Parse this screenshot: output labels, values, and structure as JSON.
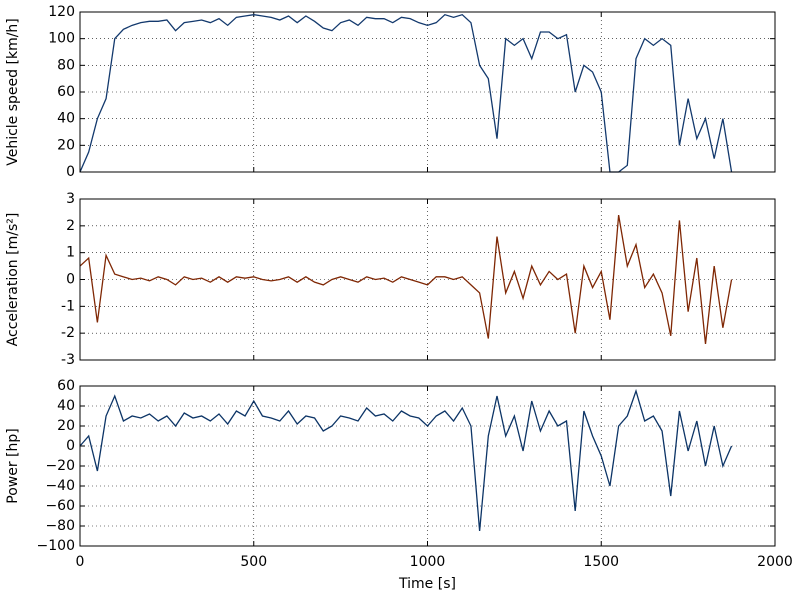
{
  "chart_data": [
    {
      "type": "line",
      "ylabel": "Vehicle speed [km/h]",
      "x": [
        0,
        25,
        50,
        75,
        100,
        125,
        150,
        175,
        200,
        225,
        250,
        275,
        300,
        325,
        350,
        375,
        400,
        425,
        450,
        475,
        500,
        525,
        550,
        575,
        600,
        625,
        650,
        675,
        700,
        725,
        750,
        775,
        800,
        825,
        850,
        875,
        900,
        925,
        950,
        975,
        1000,
        1025,
        1050,
        1075,
        1100,
        1125,
        1150,
        1175,
        1200,
        1225,
        1250,
        1275,
        1300,
        1325,
        1350,
        1375,
        1400,
        1425,
        1450,
        1475,
        1500,
        1525,
        1550,
        1575,
        1600,
        1625,
        1650,
        1675,
        1700,
        1725,
        1750,
        1775,
        1800,
        1825,
        1850,
        1875
      ],
      "series": [
        {
          "name": "speed",
          "color": "#13396d",
          "values": [
            0,
            15,
            40,
            55,
            100,
            107,
            110,
            112,
            113,
            113,
            114,
            106,
            112,
            113,
            114,
            112,
            115,
            110,
            116,
            117,
            118,
            117,
            116,
            114,
            117,
            112,
            117,
            113,
            108,
            106,
            112,
            114,
            110,
            116,
            115,
            115,
            112,
            116,
            115,
            112,
            110,
            112,
            118,
            116,
            118,
            112,
            80,
            70,
            25,
            100,
            95,
            100,
            85,
            105,
            105,
            100,
            103,
            60,
            80,
            75,
            60,
            0,
            0,
            5,
            85,
            100,
            95,
            100,
            95,
            20,
            55,
            25,
            40,
            10,
            40,
            0
          ]
        }
      ],
      "xlim": [
        0,
        2000
      ],
      "ylim": [
        0,
        120
      ],
      "yticks": [
        0,
        20,
        40,
        60,
        80,
        100,
        120
      ],
      "grid": true
    },
    {
      "type": "line",
      "ylabel": "Acceleration [m/s²]",
      "x": [
        0,
        25,
        50,
        75,
        100,
        125,
        150,
        175,
        200,
        225,
        250,
        275,
        300,
        325,
        350,
        375,
        400,
        425,
        450,
        475,
        500,
        525,
        550,
        575,
        600,
        625,
        650,
        675,
        700,
        725,
        750,
        775,
        800,
        825,
        850,
        875,
        900,
        925,
        950,
        975,
        1000,
        1025,
        1050,
        1075,
        1100,
        1125,
        1150,
        1175,
        1200,
        1225,
        1250,
        1275,
        1300,
        1325,
        1350,
        1375,
        1400,
        1425,
        1450,
        1475,
        1500,
        1525,
        1550,
        1575,
        1600,
        1625,
        1650,
        1675,
        1700,
        1725,
        1750,
        1775,
        1800,
        1825,
        1850,
        1875
      ],
      "series": [
        {
          "name": "acceleration",
          "color": "#7f2704",
          "values": [
            0.5,
            0.8,
            -1.6,
            0.9,
            0.2,
            0.1,
            0,
            0.05,
            -0.05,
            0.1,
            0,
            -0.2,
            0.1,
            0,
            0.05,
            -0.1,
            0.1,
            -0.1,
            0.1,
            0.05,
            0.1,
            0,
            -0.05,
            0,
            0.1,
            -0.1,
            0.1,
            -0.1,
            -0.2,
            0,
            0.1,
            0,
            -0.1,
            0.1,
            0,
            0.05,
            -0.1,
            0.1,
            0,
            -0.1,
            -0.2,
            0.1,
            0.1,
            0,
            0.1,
            -0.2,
            -0.5,
            -2.2,
            1.6,
            -0.5,
            0.3,
            -0.7,
            0.5,
            -0.2,
            0.3,
            0,
            0.2,
            -2,
            0.5,
            -0.3,
            0.3,
            -1.5,
            2.4,
            0.5,
            1.3,
            -0.3,
            0.2,
            -0.5,
            -2.1,
            2.2,
            -1.2,
            0.8,
            -2.4,
            0.5,
            -1.8,
            0
          ]
        }
      ],
      "xlim": [
        0,
        2000
      ],
      "ylim": [
        -3,
        3
      ],
      "yticks": [
        -3,
        -2,
        -1,
        0,
        1,
        2,
        3
      ],
      "grid": true
    },
    {
      "type": "line",
      "ylabel": "Power [hp]",
      "xlabel": "Time [s]",
      "x": [
        0,
        25,
        50,
        75,
        100,
        125,
        150,
        175,
        200,
        225,
        250,
        275,
        300,
        325,
        350,
        375,
        400,
        425,
        450,
        475,
        500,
        525,
        550,
        575,
        600,
        625,
        650,
        675,
        700,
        725,
        750,
        775,
        800,
        825,
        850,
        875,
        900,
        925,
        950,
        975,
        1000,
        1025,
        1050,
        1075,
        1100,
        1125,
        1150,
        1175,
        1200,
        1225,
        1250,
        1275,
        1300,
        1325,
        1350,
        1375,
        1400,
        1425,
        1450,
        1475,
        1500,
        1525,
        1550,
        1575,
        1600,
        1625,
        1650,
        1675,
        1700,
        1725,
        1750,
        1775,
        1800,
        1825,
        1850,
        1875
      ],
      "series": [
        {
          "name": "power",
          "color": "#0c3466",
          "values": [
            0,
            10,
            -25,
            30,
            50,
            25,
            30,
            28,
            32,
            25,
            30,
            20,
            33,
            28,
            30,
            25,
            32,
            22,
            35,
            30,
            45,
            30,
            28,
            25,
            35,
            22,
            30,
            28,
            15,
            20,
            30,
            28,
            25,
            38,
            30,
            32,
            25,
            35,
            30,
            28,
            20,
            30,
            35,
            25,
            38,
            20,
            -85,
            10,
            50,
            10,
            30,
            -5,
            45,
            15,
            35,
            20,
            25,
            -65,
            35,
            10,
            -10,
            -40,
            20,
            30,
            55,
            25,
            30,
            15,
            -50,
            35,
            -5,
            25,
            -20,
            20,
            -20,
            0
          ]
        }
      ],
      "xlim": [
        0,
        2000
      ],
      "ylim": [
        -100,
        60
      ],
      "yticks": [
        {
          "value": -100,
          "label": "−100"
        },
        {
          "value": -80,
          "label": "−80"
        },
        {
          "value": -60,
          "label": "−60"
        },
        {
          "value": -40,
          "label": "−40"
        },
        {
          "value": -20,
          "label": "−20"
        },
        0,
        20,
        40,
        60
      ],
      "xticks": [
        0,
        500,
        1000,
        1500,
        2000
      ],
      "grid": true
    }
  ]
}
